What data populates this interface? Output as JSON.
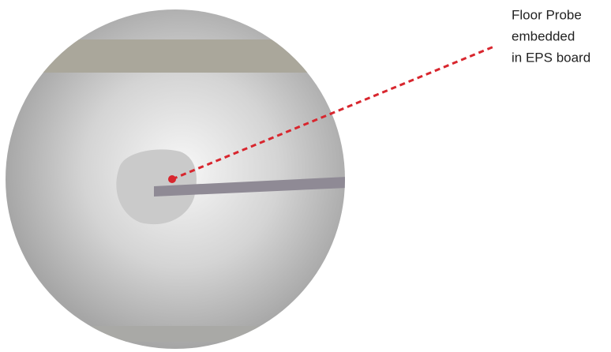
{
  "callout": {
    "lines": [
      "Floor Probe",
      "embedded",
      "in EPS board"
    ]
  }
}
